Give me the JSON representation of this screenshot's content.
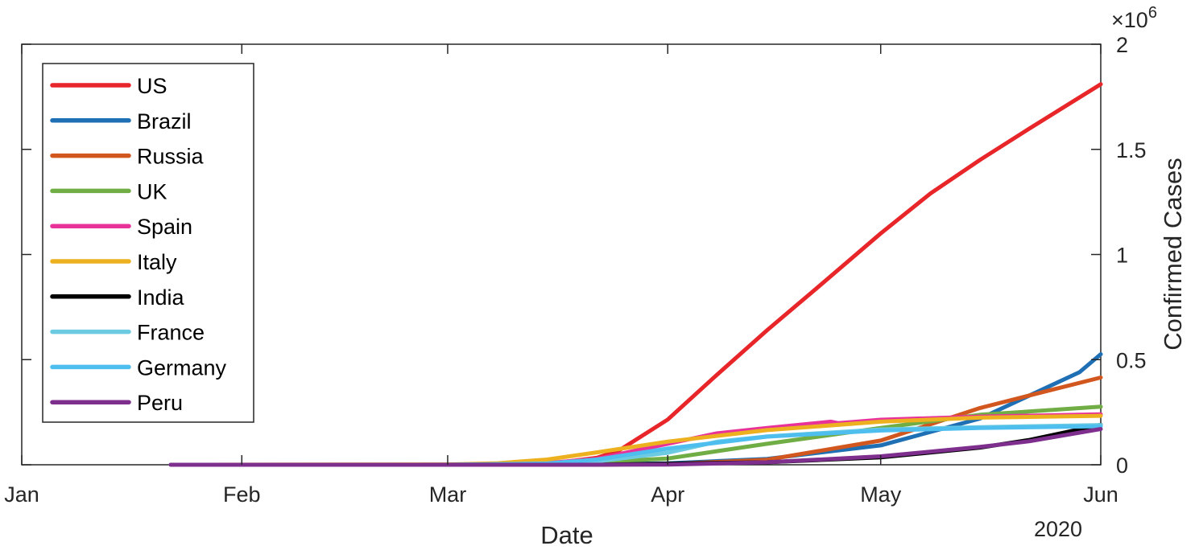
{
  "chart_data": {
    "type": "line",
    "title": "",
    "xlabel": "Date",
    "ylabel": "Confirmed Cases",
    "x_tick_labels": [
      "Jan",
      "Feb",
      "Mar",
      "Apr",
      "May",
      "Jun"
    ],
    "x_secondary_label": "2020",
    "y_ticks": [
      0,
      0.5,
      1,
      1.5,
      2
    ],
    "y_tick_labels": [
      "0",
      "0.5",
      "1",
      "1.5",
      "2"
    ],
    "y_exponent_label": "×10",
    "y_exponent_power": "6",
    "xlim": [
      "2020-01-01",
      "2020-06-01"
    ],
    "ylim": [
      0,
      2000000
    ],
    "y_axis_side": "right",
    "grid": false,
    "legend_position": "top-left",
    "series": [
      {
        "name": "US",
        "color": "#E8262A",
        "x": [
          "2020-01-22",
          "2020-03-01",
          "2020-03-15",
          "2020-03-22",
          "2020-03-25",
          "2020-04-01",
          "2020-04-08",
          "2020-04-15",
          "2020-04-22",
          "2020-05-01",
          "2020-05-08",
          "2020-05-15",
          "2020-05-22",
          "2020-06-01"
        ],
        "y": [
          0,
          0,
          3500,
          33000,
          65000,
          215000,
          430000,
          640000,
          840000,
          1100000,
          1290000,
          1450000,
          1600000,
          1810000
        ]
      },
      {
        "name": "Brazil",
        "color": "#1F6FB4",
        "x": [
          "2020-01-22",
          "2020-03-15",
          "2020-04-01",
          "2020-04-15",
          "2020-05-01",
          "2020-05-15",
          "2020-05-22",
          "2020-05-29",
          "2020-06-01"
        ],
        "y": [
          0,
          0,
          6800,
          28000,
          92000,
          220000,
          330000,
          440000,
          526000
        ]
      },
      {
        "name": "Russia",
        "color": "#D2571F",
        "x": [
          "2020-01-22",
          "2020-03-15",
          "2020-04-01",
          "2020-04-15",
          "2020-05-01",
          "2020-05-15",
          "2020-05-22",
          "2020-06-01"
        ],
        "y": [
          0,
          0,
          2800,
          24000,
          115000,
          270000,
          330000,
          415000
        ]
      },
      {
        "name": "UK",
        "color": "#71AD45",
        "x": [
          "2020-01-22",
          "2020-03-01",
          "2020-03-15",
          "2020-04-01",
          "2020-04-15",
          "2020-05-01",
          "2020-05-15",
          "2020-06-01"
        ],
        "y": [
          0,
          0,
          1400,
          30000,
          100000,
          175000,
          238000,
          276000
        ]
      },
      {
        "name": "Spain",
        "color": "#E8329A",
        "x": [
          "2020-01-22",
          "2020-03-01",
          "2020-03-15",
          "2020-03-22",
          "2020-04-01",
          "2020-04-08",
          "2020-04-15",
          "2020-04-24",
          "2020-04-25",
          "2020-05-01",
          "2020-05-15",
          "2020-06-01"
        ],
        "y": [
          0,
          0,
          8000,
          28000,
          100000,
          150000,
          175000,
          205000,
          198000,
          214000,
          229000,
          240000
        ]
      },
      {
        "name": "Italy",
        "color": "#EDB120",
        "x": [
          "2020-01-22",
          "2020-03-01",
          "2020-03-08",
          "2020-03-15",
          "2020-03-22",
          "2020-04-01",
          "2020-04-15",
          "2020-05-01",
          "2020-05-15",
          "2020-06-01"
        ],
        "y": [
          0,
          1700,
          7400,
          24700,
          59000,
          110000,
          165000,
          205000,
          224000,
          233000
        ]
      },
      {
        "name": "India",
        "color": "#000000",
        "x": [
          "2020-01-22",
          "2020-03-22",
          "2020-04-15",
          "2020-05-01",
          "2020-05-15",
          "2020-05-22",
          "2020-06-01"
        ],
        "y": [
          0,
          400,
          12000,
          35000,
          82000,
          118000,
          190000
        ]
      },
      {
        "name": "France",
        "color": "#6CCBE0",
        "x": [
          "2020-01-22",
          "2020-03-01",
          "2020-03-15",
          "2020-03-22",
          "2020-04-01",
          "2020-04-08",
          "2020-04-15",
          "2020-05-01",
          "2020-05-15",
          "2020-06-01"
        ],
        "y": [
          0,
          100,
          5400,
          16000,
          57000,
          110000,
          135000,
          168000,
          179000,
          189000
        ]
      },
      {
        "name": "Germany",
        "color": "#4DBEEE",
        "x": [
          "2020-01-22",
          "2020-03-01",
          "2020-03-15",
          "2020-03-22",
          "2020-04-01",
          "2020-04-15",
          "2020-05-01",
          "2020-05-15",
          "2020-06-01"
        ],
        "y": [
          0,
          100,
          6000,
          25000,
          77000,
          134000,
          163000,
          175000,
          183000
        ]
      },
      {
        "name": "Peru",
        "color": "#7E2F8E",
        "x": [
          "2020-01-22",
          "2020-03-15",
          "2020-04-01",
          "2020-04-15",
          "2020-05-01",
          "2020-05-15",
          "2020-05-22",
          "2020-06-01"
        ],
        "y": [
          0,
          0,
          1300,
          12000,
          40000,
          85000,
          112000,
          170000
        ]
      }
    ]
  }
}
